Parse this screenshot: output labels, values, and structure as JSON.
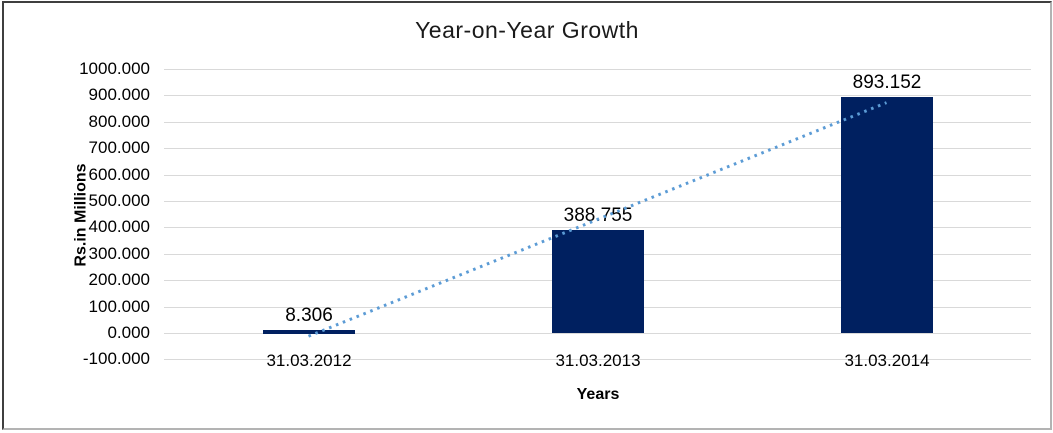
{
  "chart_data": {
    "type": "bar",
    "title": "Year-on-Year Growth",
    "xlabel": "Years",
    "ylabel": "Rs.in Millions",
    "categories": [
      "31.03.2012",
      "31.03.2013",
      "31.03.2014"
    ],
    "values": [
      8.306,
      388.755,
      893.152
    ],
    "data_labels": [
      "8.306",
      "388.755",
      "893.152"
    ],
    "ylim": [
      -100,
      1000
    ],
    "ytick_step": 100,
    "ytick_labels": [
      "1000.000",
      "900.000",
      "800.000",
      "700.000",
      "600.000",
      "500.000",
      "400.000",
      "300.000",
      "200.000",
      "100.000",
      "0.000",
      "-100.000"
    ],
    "grid": true,
    "legend_position": "none",
    "bar_color": "#002060",
    "gridline_color": "#d9d9d9",
    "text_color": "#000000",
    "trendline": {
      "type": "linear",
      "line_style": "dotted",
      "color": "#5b9bd5"
    }
  }
}
